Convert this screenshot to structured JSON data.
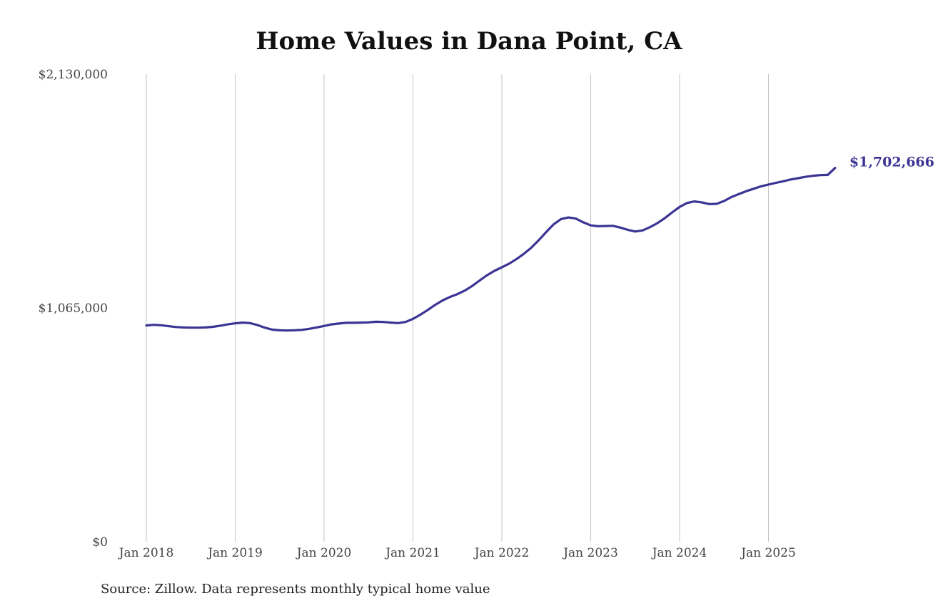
{
  "chart_data": {
    "type": "line",
    "title": "Home Values in Dana Point, CA",
    "xlabel": "",
    "ylabel": "",
    "source": "Source: Zillow. Data represents monthly typical home value",
    "x_start": "2018-01",
    "x_ticks": [
      "Jan 2018",
      "Jan 2019",
      "Jan 2020",
      "Jan 2021",
      "Jan 2022",
      "Jan 2023",
      "Jan 2024",
      "Jan 2025"
    ],
    "y_ticks": [
      "$0",
      "$1,065,000",
      "$2,130,000"
    ],
    "ylim": [
      0,
      2130000
    ],
    "grid": "vertical",
    "series": [
      {
        "color": "#3b3494",
        "last_label": "$1,702,666",
        "values": [
          985000,
          988000,
          986000,
          982000,
          978000,
          976000,
          975000,
          975000,
          976000,
          979000,
          984000,
          990000,
          995000,
          998000,
          996000,
          987000,
          975000,
          966000,
          963000,
          962000,
          963000,
          965000,
          970000,
          976000,
          983000,
          990000,
          994000,
          997000,
          997000,
          998000,
          999000,
          1002000,
          1001000,
          998000,
          996000,
          1001000,
          1015000,
          1034000,
          1056000,
          1079000,
          1099000,
          1115000,
          1128000,
          1144000,
          1165000,
          1190000,
          1214000,
          1234000,
          1250000,
          1267000,
          1288000,
          1312000,
          1340000,
          1374000,
          1411000,
          1446000,
          1470000,
          1477000,
          1472000,
          1455000,
          1441000,
          1437000,
          1438000,
          1439000,
          1431000,
          1421000,
          1413000,
          1418000,
          1433000,
          1451000,
          1474000,
          1500000,
          1525000,
          1543000,
          1550000,
          1546000,
          1538000,
          1539000,
          1552000,
          1570000,
          1584000,
          1597000,
          1608000,
          1619000,
          1627000,
          1635000,
          1642000,
          1650000,
          1656000,
          1662000,
          1667000,
          1670000,
          1671000,
          1702666
        ]
      }
    ]
  }
}
